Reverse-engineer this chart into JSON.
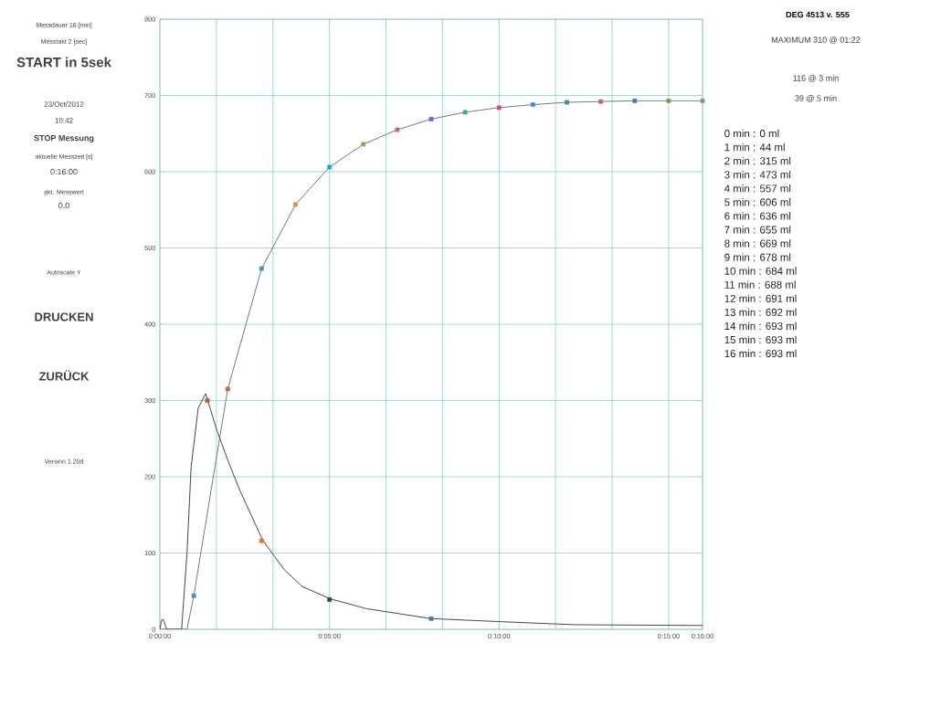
{
  "chart_data": {
    "type": "line",
    "title": "DEG 4513 v. 555",
    "xlim": [
      0,
      16
    ],
    "ylim": [
      0,
      800
    ],
    "xticks": [
      {
        "value": 0,
        "label": "0:00:00"
      },
      {
        "value": 1.6667,
        "label": null
      },
      {
        "value": 3.3333,
        "label": null
      },
      {
        "value": 5,
        "label": "0:05:00"
      },
      {
        "value": 6.6667,
        "label": null
      },
      {
        "value": 8.3333,
        "label": null
      },
      {
        "value": 10,
        "label": "0:10:00"
      },
      {
        "value": 11.6667,
        "label": null
      },
      {
        "value": 13.3333,
        "label": null
      },
      {
        "value": 15,
        "label": "0:15:00"
      },
      {
        "value": 16,
        "label": "0:16:00"
      }
    ],
    "yticks": [
      0,
      100,
      200,
      300,
      400,
      500,
      600,
      700,
      800
    ],
    "grid": true,
    "series": [
      {
        "color": "#5f7478",
        "marker": "none",
        "x": [
          0,
          0.8,
          1,
          2,
          3,
          4,
          5,
          6,
          7,
          8,
          9,
          10,
          11,
          12,
          13,
          14,
          15,
          16
        ],
        "values": [
          0,
          0,
          44,
          315,
          473,
          557,
          606,
          636,
          655,
          669,
          678,
          684,
          688,
          691,
          692,
          693,
          693,
          693
        ]
      },
      {
        "type": "scatter",
        "marker": "square",
        "x": [
          1,
          2,
          3,
          4,
          5,
          6,
          7,
          8,
          9,
          10,
          11,
          12,
          13,
          14,
          15,
          16
        ],
        "values": [
          44,
          315,
          473,
          557,
          606,
          636,
          655,
          669,
          678,
          684,
          688,
          691,
          692,
          693,
          693,
          693
        ],
        "colors": [
          "#4a90c0",
          "#d06040",
          "#4a90c0",
          "#e09030",
          "#30a0c0",
          "#a0a040",
          "#d06080",
          "#6070c0",
          "#40b080",
          "#d05070",
          "#5080d0",
          "#409090",
          "#c06080",
          "#5070b0",
          "#a09040",
          "#909090"
        ]
      },
      {
        "color": "#3a3a3a",
        "marker": "none",
        "x": [
          0,
          0.05,
          0.1,
          0.2,
          0.64,
          0.8,
          0.92,
          1.13,
          1.35,
          1.68,
          2.0,
          2.35,
          3.03,
          3.67,
          4.2,
          5.02,
          6.1,
          8.0,
          10.05,
          12.25,
          16
        ],
        "values": [
          0,
          12,
          13,
          0,
          0,
          100,
          212,
          290,
          309,
          261,
          222,
          183,
          117,
          78,
          56,
          40,
          27,
          14,
          10,
          6,
          5
        ]
      },
      {
        "type": "scatter",
        "marker": "square",
        "x": [
          1.4,
          3,
          5,
          8
        ],
        "values": [
          300,
          116,
          39,
          14
        ],
        "colors": [
          "#c05040",
          "#e07030",
          "#404040",
          "#4080a0"
        ]
      }
    ],
    "annotations": [
      "Messdauer 16 [min]",
      "Messtakt 2 [sec]",
      "START in 5sek",
      "23/Oct/2012",
      "10:42",
      "STOP Messung",
      "aktuelle Messzeit [s]",
      "0:16:00",
      "akt. Messwert",
      "0.0",
      "Autoscale Y",
      "DRUCKEN",
      "ZURÜCK",
      "Version 1.20d",
      "MAXIMUM 310 @ 01:22",
      "116 @ 3 min",
      "39 @ 5 min",
      "0 min : 0 ml",
      "1 min : 44 ml",
      "2 min : 315 ml",
      "3 min : 473 ml",
      "4 min : 557 ml",
      "5 min : 606 ml",
      "6 min : 636 ml",
      "7 min : 655 ml",
      "8 min : 669 ml",
      "9 min : 678 ml",
      "10 min : 684 ml",
      "11 min : 688 ml",
      "12 min : 691 ml",
      "13 min : 692 ml",
      "14 min : 693 ml",
      "15 min : 693 ml",
      "16 min : 693 ml"
    ]
  }
}
